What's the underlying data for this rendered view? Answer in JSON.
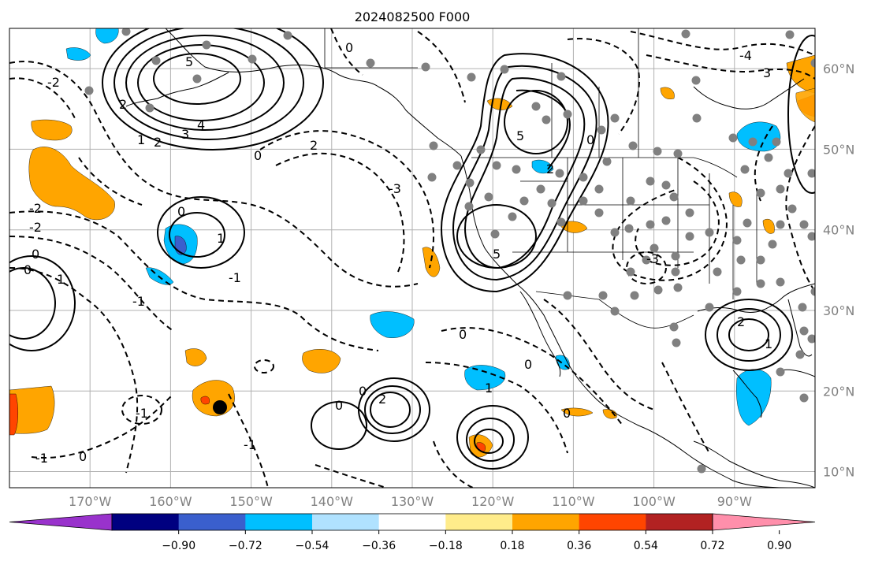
{
  "title": "2024082500 F000",
  "map": {
    "lon_range": [
      -180,
      -80
    ],
    "lat_range": [
      8,
      65
    ],
    "gridlines": true,
    "lon_ticks": [
      {
        "value": -170,
        "label": "170°W"
      },
      {
        "value": -160,
        "label": "160°W"
      },
      {
        "value": -150,
        "label": "150°W"
      },
      {
        "value": -140,
        "label": "140°W"
      },
      {
        "value": -130,
        "label": "130°W"
      },
      {
        "value": -120,
        "label": "120°W"
      },
      {
        "value": -110,
        "label": "110°W"
      },
      {
        "value": -100,
        "label": "100°W"
      },
      {
        "value": -90,
        "label": "90°W"
      }
    ],
    "lat_ticks": [
      {
        "value": 60,
        "label": "60°N"
      },
      {
        "value": 50,
        "label": "50°N"
      },
      {
        "value": 40,
        "label": "40°N"
      },
      {
        "value": 30,
        "label": "30°N"
      },
      {
        "value": 20,
        "label": "20°N"
      },
      {
        "value": 10,
        "label": "10°N"
      }
    ],
    "contour_labels": [
      "5",
      "4",
      "3",
      "2",
      "1",
      "0",
      "-1",
      "-2",
      "-3",
      "-4"
    ]
  },
  "colorbar": {
    "colors": [
      "#9932cc",
      "#000080",
      "#3a5fcd",
      "#00bfff",
      "#b0e2ff",
      "#ffffff",
      "#ffec8b",
      "#ffa500",
      "#ff4500",
      "#b22222",
      "#ff8fab"
    ],
    "tick_labels": [
      "−0.90",
      "−0.72",
      "−0.54",
      "−0.36",
      "−0.18",
      "0.18",
      "0.36",
      "0.54",
      "0.72",
      "0.90"
    ],
    "extend": "both"
  },
  "colors": {
    "contour": "#000000",
    "station_dot": "#808080",
    "grid": "#b0b0b0",
    "axis_label": "#808080"
  }
}
